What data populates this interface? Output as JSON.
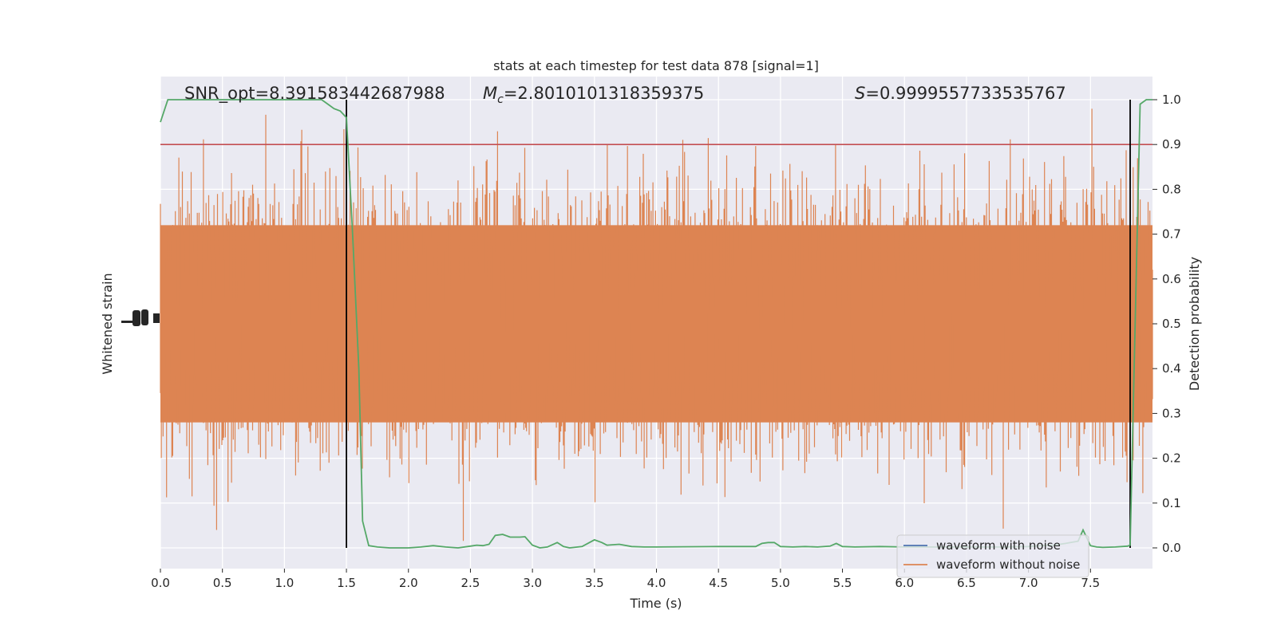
{
  "chart_data": {
    "type": "line",
    "title": "stats at each timestep for test data 878 [signal=1]",
    "xlabel": "Time (s)",
    "ylabel_left": "Whitened strain",
    "ylabel_right": "Detection probability",
    "xlim": [
      0.0,
      8.0
    ],
    "ylim_right": [
      -0.047,
      1.0
    ],
    "grid": true,
    "xticks": [
      "0.0",
      "0.5",
      "1.0",
      "1.5",
      "2.0",
      "2.5",
      "3.0",
      "3.5",
      "4.0",
      "4.5",
      "5.0",
      "5.5",
      "6.0",
      "6.5",
      "7.0",
      "7.5"
    ],
    "xtick_values": [
      0.0,
      0.5,
      1.0,
      1.5,
      2.0,
      2.5,
      3.0,
      3.5,
      4.0,
      4.5,
      5.0,
      5.5,
      6.0,
      6.5,
      7.0,
      7.5
    ],
    "yticks_right": [
      "0.0",
      "0.1",
      "0.2",
      "0.3",
      "0.4",
      "0.5",
      "0.6",
      "0.7",
      "0.8",
      "0.9",
      "1.0"
    ],
    "ytick_values_right": [
      0.0,
      0.1,
      0.2,
      0.3,
      0.4,
      0.5,
      0.6,
      0.7,
      0.8,
      0.9,
      1.0
    ],
    "annotations": {
      "snr_text": "SNR_opt=8.391583442687988",
      "mc_symbol": "M",
      "mc_sub": "c",
      "mc_value": "=2.8010101318359375",
      "s_symbol": "S",
      "s_value": "=0.9999557733535767"
    },
    "threshold": {
      "value": 0.9,
      "color": "#c44e52"
    },
    "vlines": [
      {
        "x": 1.5,
        "color": "#000000"
      },
      {
        "x": 7.82,
        "color": "#000000"
      }
    ],
    "legend": {
      "placement": "lower-right",
      "entries": [
        "waveform with noise",
        "waveform without noise"
      ]
    },
    "series": [
      {
        "name": "waveform with noise",
        "color": "#4c72b0",
        "values": []
      },
      {
        "name": "waveform without noise",
        "color": "#dd8452",
        "rendered_as": "dense noise band spanning roughly 0.0 to 1.0 on the probability scale"
      },
      {
        "name": "detection probability",
        "color": "#55a868",
        "x": [
          0.0,
          0.06,
          0.2,
          0.5,
          0.8,
          1.0,
          1.2,
          1.3,
          1.35,
          1.4,
          1.45,
          1.5,
          1.55,
          1.6,
          1.63,
          1.68,
          1.75,
          1.85,
          2.0,
          2.1,
          2.2,
          2.3,
          2.4,
          2.5,
          2.55,
          2.6,
          2.65,
          2.7,
          2.76,
          2.82,
          2.9,
          2.94,
          3.0,
          3.06,
          3.12,
          3.2,
          3.25,
          3.3,
          3.4,
          3.5,
          3.56,
          3.6,
          3.7,
          3.8,
          3.9,
          4.0,
          4.5,
          4.8,
          4.85,
          4.9,
          4.95,
          5.0,
          5.1,
          5.2,
          5.3,
          5.4,
          5.45,
          5.5,
          5.6,
          5.8,
          6.0,
          6.3,
          6.5,
          6.8,
          7.0,
          7.1,
          7.2,
          7.3,
          7.4,
          7.44,
          7.5,
          7.55,
          7.6,
          7.7,
          7.8,
          7.82,
          7.9,
          7.95,
          8.0
        ],
        "values": [
          0.95,
          1.0,
          1.0,
          1.0,
          1.0,
          1.0,
          1.0,
          1.0,
          0.99,
          0.98,
          0.975,
          0.96,
          0.7,
          0.4,
          0.06,
          0.005,
          0.002,
          0.0,
          0.0,
          0.002,
          0.005,
          0.002,
          0.0,
          0.004,
          0.006,
          0.005,
          0.008,
          0.028,
          0.03,
          0.024,
          0.024,
          0.025,
          0.006,
          0.0,
          0.002,
          0.012,
          0.003,
          0.0,
          0.003,
          0.018,
          0.012,
          0.006,
          0.008,
          0.003,
          0.002,
          0.002,
          0.003,
          0.003,
          0.01,
          0.012,
          0.012,
          0.003,
          0.002,
          0.003,
          0.002,
          0.004,
          0.01,
          0.003,
          0.002,
          0.003,
          0.002,
          0.002,
          0.002,
          0.002,
          0.003,
          0.005,
          0.006,
          0.01,
          0.015,
          0.04,
          0.005,
          0.002,
          0.001,
          0.002,
          0.004,
          0.006,
          0.99,
          1.0,
          1.0
        ]
      }
    ]
  }
}
